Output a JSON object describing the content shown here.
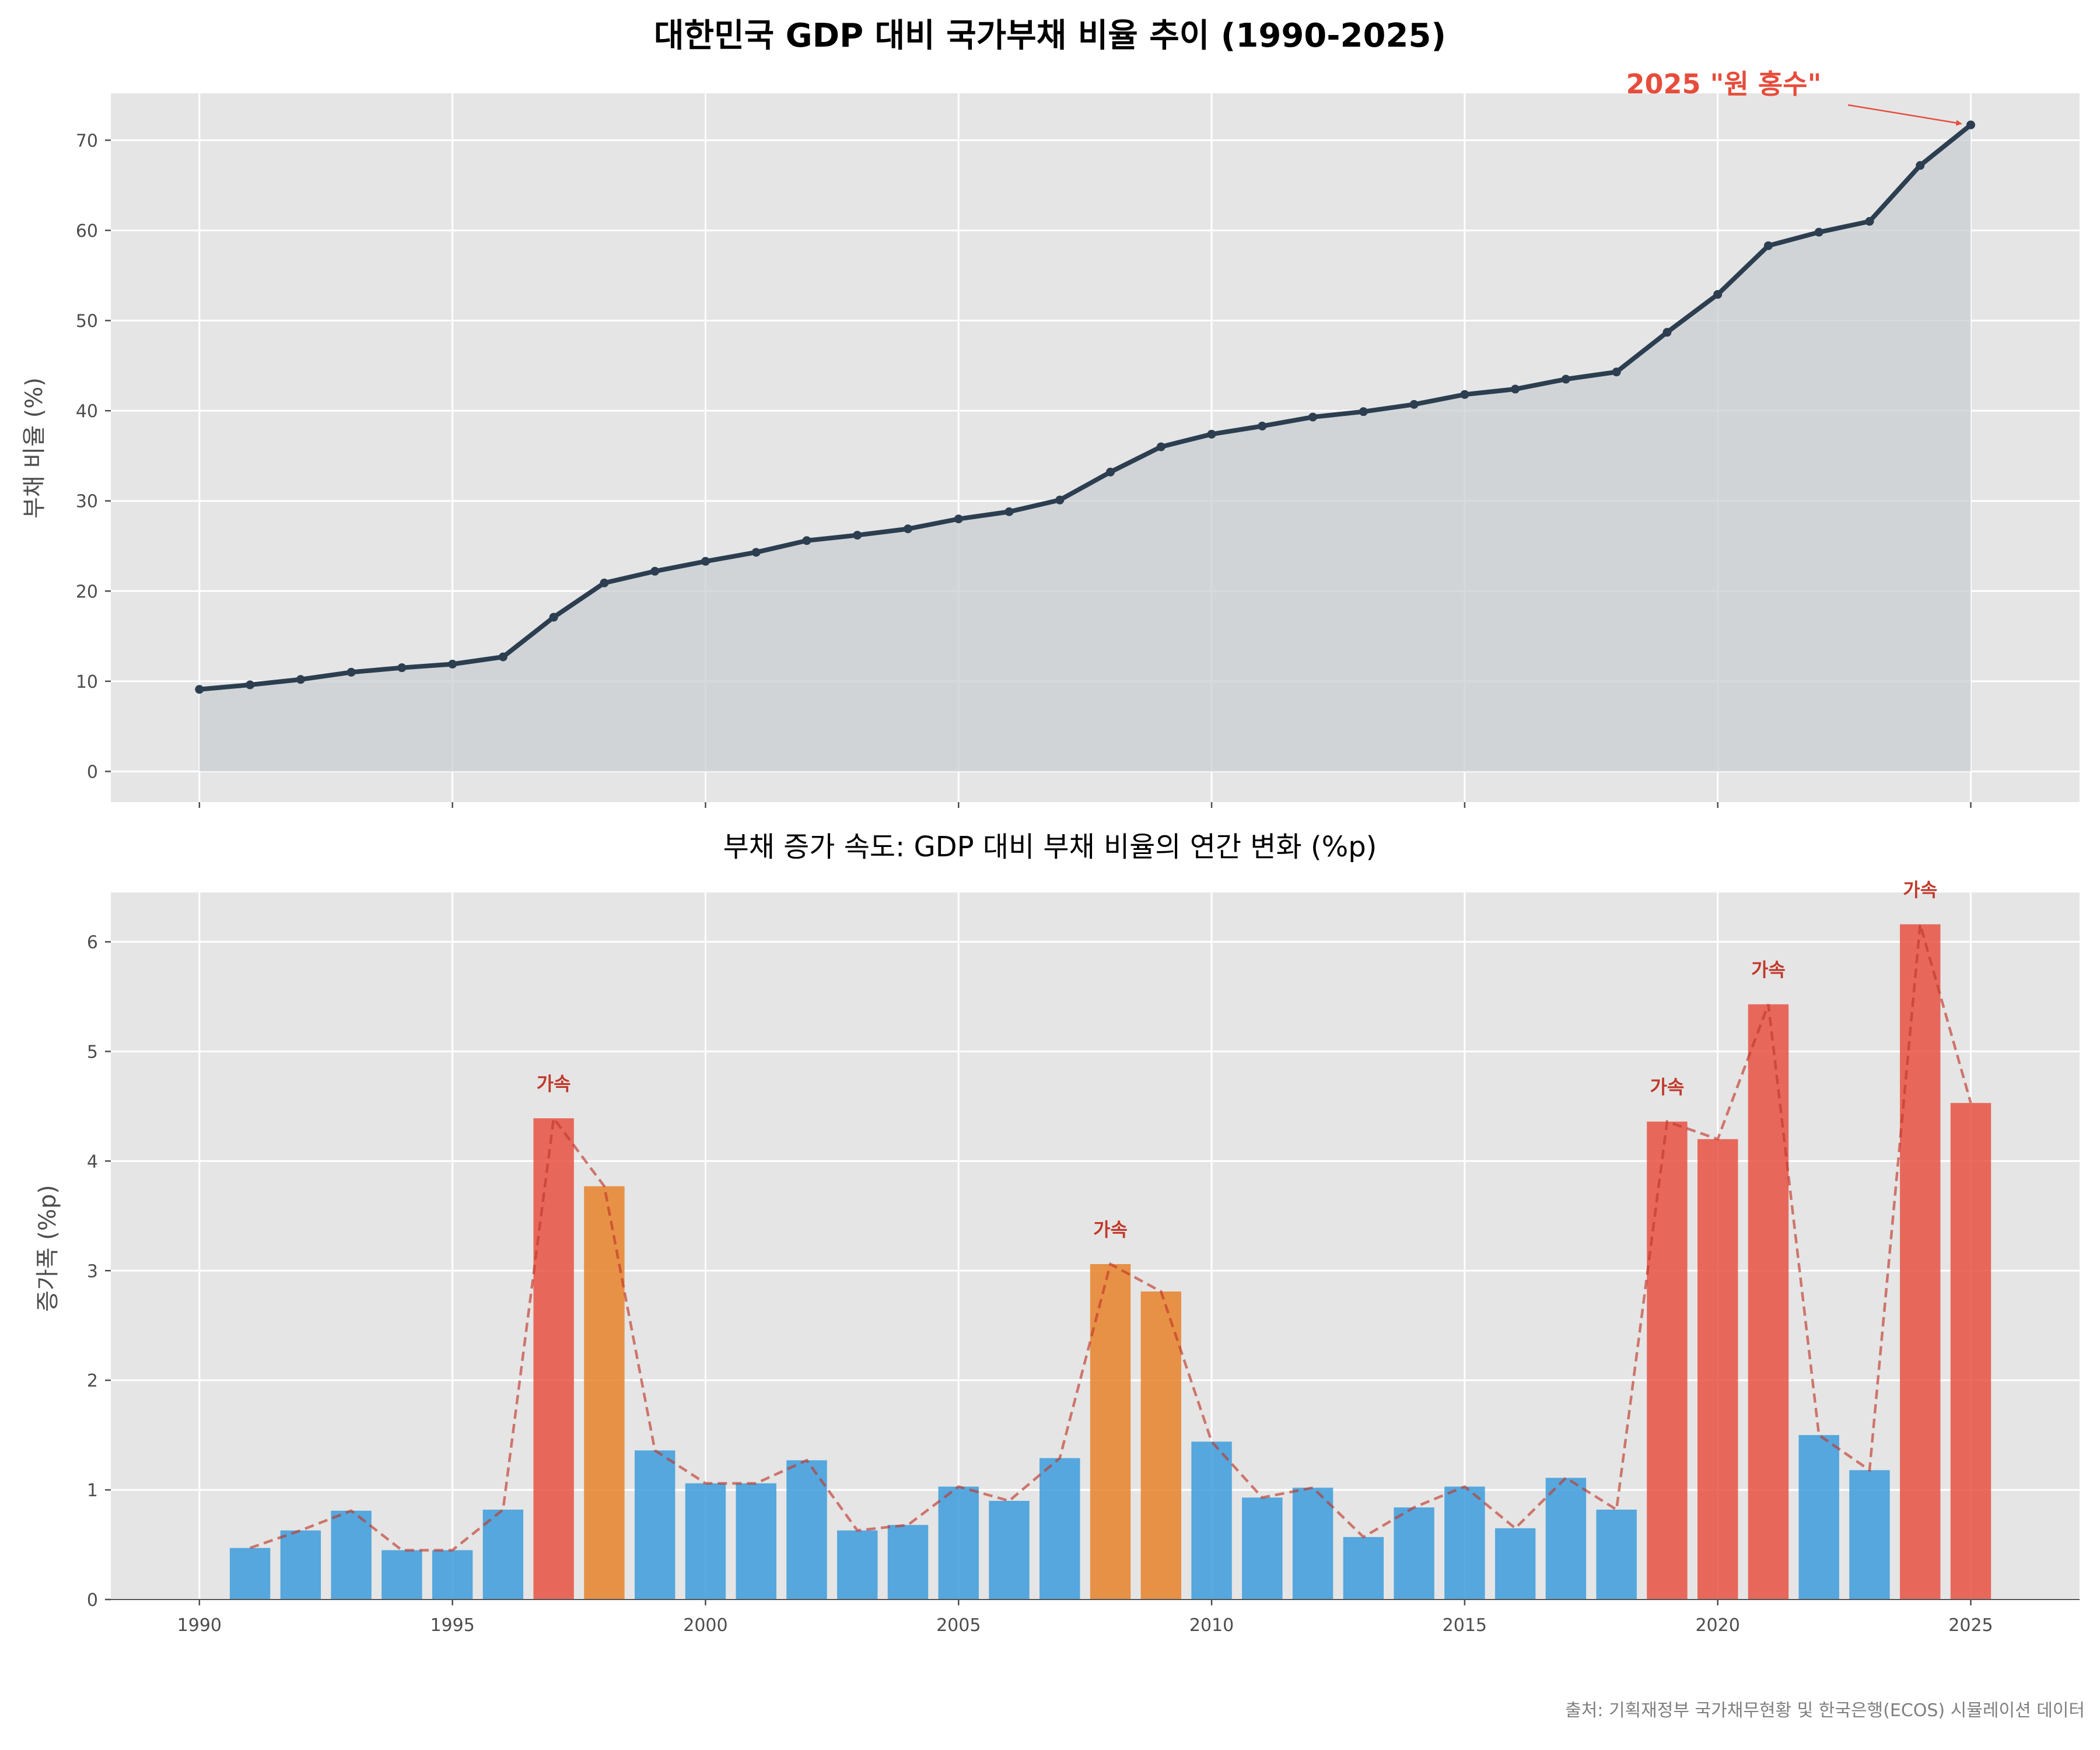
{
  "chart_data": [
    {
      "type": "line",
      "title": "대한민국 GDP 대비 국가부채 비율 추이 (1990-2025)",
      "xlabel": "",
      "ylabel": "부채 비율 (%)",
      "xlim": [
        1988.25,
        2027.15
      ],
      "ylim": [
        -3.4,
        75.2
      ],
      "yticks": [
        0,
        10,
        20,
        30,
        40,
        50,
        60,
        70
      ],
      "x": [
        1990,
        1991,
        1992,
        1993,
        1994,
        1995,
        1996,
        1997,
        1998,
        1999,
        2000,
        2001,
        2002,
        2003,
        2004,
        2005,
        2006,
        2007,
        2008,
        2009,
        2010,
        2011,
        2012,
        2013,
        2014,
        2015,
        2016,
        2017,
        2018,
        2019,
        2020,
        2021,
        2022,
        2023,
        2024,
        2025
      ],
      "series": [
        {
          "name": "GDP 대비 국가부채 비율",
          "color": "#2c3e50",
          "values": [
            9.1,
            9.6,
            10.2,
            11.0,
            11.5,
            11.9,
            12.7,
            17.1,
            20.9,
            22.2,
            23.3,
            24.3,
            25.6,
            26.2,
            26.9,
            28.0,
            28.8,
            30.1,
            33.2,
            36.0,
            37.4,
            38.3,
            39.3,
            39.9,
            40.7,
            41.8,
            42.4,
            43.5,
            44.3,
            48.7,
            52.9,
            58.3,
            59.8,
            61.0,
            67.2,
            71.7
          ]
        }
      ],
      "annotation": {
        "text": "2025 \"원 홍수\"",
        "x": 2025,
        "y": 71.7,
        "color": "#e74c3c"
      }
    },
    {
      "type": "bar",
      "title": "부채 증가 속도: GDP 대비 부채 비율의 연간 변화 (%p)",
      "xlabel": "",
      "ylabel": "증가폭 (%p)",
      "xlim": [
        1988.25,
        2027.15
      ],
      "ylim": [
        0,
        6.45
      ],
      "yticks": [
        0,
        1,
        2,
        3,
        4,
        5,
        6
      ],
      "xticks": [
        1990,
        1995,
        2000,
        2005,
        2010,
        2015,
        2020,
        2025
      ],
      "x": [
        1991,
        1992,
        1993,
        1994,
        1995,
        1996,
        1997,
        1998,
        1999,
        2000,
        2001,
        2002,
        2003,
        2004,
        2005,
        2006,
        2007,
        2008,
        2009,
        2010,
        2011,
        2012,
        2013,
        2014,
        2015,
        2016,
        2017,
        2018,
        2019,
        2020,
        2021,
        2022,
        2023,
        2024,
        2025
      ],
      "values": [
        0.47,
        0.63,
        0.81,
        0.45,
        0.45,
        0.82,
        4.39,
        3.77,
        1.36,
        1.06,
        1.06,
        1.27,
        0.63,
        0.68,
        1.03,
        0.9,
        1.29,
        3.06,
        2.81,
        1.44,
        0.93,
        1.02,
        0.57,
        0.84,
        1.03,
        0.65,
        1.11,
        0.82,
        4.36,
        4.2,
        5.43,
        1.5,
        1.18,
        6.16,
        4.53
      ],
      "colors": {
        "normal": "#3498db",
        "elevated": "#e67e22",
        "high": "#e74c3c",
        "trend": "#c0392b"
      },
      "thresholds": {
        "elevated": 2.5,
        "high": 4.0
      },
      "trend_line": "dashed",
      "accel_label": "가속",
      "accel_years": [
        1997,
        2008,
        2019,
        2021,
        2024
      ]
    }
  ],
  "footer": {
    "source": "출처: 기획재정부 국가채무현황 및 한국은행(ECOS) 시뮬레이션 데이터"
  }
}
